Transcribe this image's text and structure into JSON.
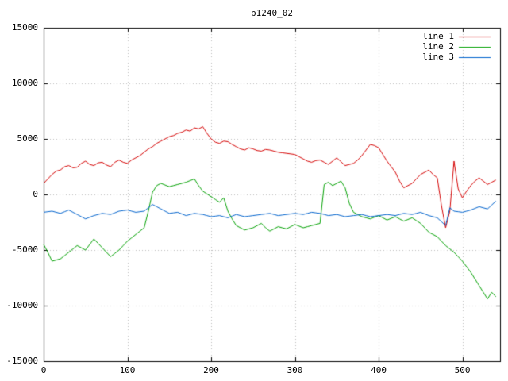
{
  "chart_data": {
    "type": "line",
    "title": "p1240_02",
    "xlabel": "",
    "ylabel": "",
    "xlim": [
      0,
      545
    ],
    "ylim": [
      -15000,
      15000
    ],
    "xticks": [
      0,
      100,
      200,
      300,
      400,
      500
    ],
    "yticks": [
      -15000,
      -10000,
      -5000,
      0,
      5000,
      10000,
      15000
    ],
    "grid": true,
    "grid_style": "dotted",
    "grid_color": "#bbbbbb",
    "axis_color": "#000000",
    "background": "#ffffff",
    "legend_position": "top-right-inside",
    "x_start": 0,
    "x_step": 5,
    "series": [
      {
        "name": "line 1",
        "color": "#d40000",
        "values": [
          1000,
          1400,
          1800,
          2100,
          2200,
          2500,
          2600,
          2400,
          2450,
          2800,
          3000,
          2700,
          2600,
          2850,
          2900,
          2650,
          2500,
          2900,
          3100,
          2900,
          2800,
          3100,
          3300,
          3500,
          3800,
          4100,
          4300,
          4600,
          4800,
          5000,
          5200,
          5300,
          5500,
          5600,
          5800,
          5700,
          6000,
          5900,
          6100,
          5500,
          5000,
          4700,
          4600,
          4800,
          4750,
          4500,
          4300,
          4100,
          4000,
          4200,
          4100,
          3950,
          3900,
          4050,
          4000,
          3900,
          3800,
          3750,
          3700,
          3650,
          3600,
          3400,
          3200,
          3000,
          2900,
          3050,
          3100,
          2900,
          2700,
          3000,
          3300,
          2950,
          2600,
          2700,
          2800,
          3100,
          3500,
          4000,
          4500,
          4400,
          4200,
          3600,
          3000,
          2500,
          2000,
          1200,
          600,
          800,
          1000,
          1400,
          1800,
          2000,
          2200,
          1800,
          1500,
          -1000,
          -3000,
          -1500,
          3000,
          500,
          -300,
          300,
          800,
          1200,
          1500,
          1200,
          900,
          1100,
          1300
        ]
      },
      {
        "name": "line 2",
        "color": "#00a000",
        "values": [
          -4500,
          -5200,
          -6000,
          -5900,
          -5800,
          -5500,
          -5200,
          -4900,
          -4600,
          -4800,
          -5000,
          -4500,
          -4000,
          -4400,
          -4800,
          -5200,
          -5600,
          -5300,
          -5000,
          -4600,
          -4200,
          -3900,
          -3600,
          -3300,
          -3000,
          -1500,
          200,
          800,
          1000,
          850,
          700,
          800,
          900,
          1000,
          1100,
          1250,
          1400,
          800,
          300,
          50,
          -200,
          -450,
          -700,
          -300,
          -1500,
          -2200,
          -2800,
          -3000,
          -3200,
          -3100,
          -3000,
          -2800,
          -2600,
          -3000,
          -3300,
          -3100,
          -2900,
          -3000,
          -3100,
          -2900,
          -2700,
          -2850,
          -3000,
          -2900,
          -2800,
          -2700,
          -2600,
          900,
          1100,
          800,
          1000,
          1200,
          600,
          -800,
          -1600,
          -1800,
          -2000,
          -2100,
          -2200,
          -2050,
          -1900,
          -2100,
          -2300,
          -2150,
          -2000,
          -2200,
          -2400,
          -2250,
          -2100,
          -2350,
          -2600,
          -3000,
          -3400,
          -3600,
          -3800,
          -4200,
          -4600,
          -4900,
          -5200,
          -5600,
          -6000,
          -6500,
          -7000,
          -7600,
          -8200,
          -8800,
          -9400,
          -8800,
          -9200
        ]
      },
      {
        "name": "line 3",
        "color": "#0063cc",
        "values": [
          -1600,
          -1550,
          -1500,
          -1600,
          -1700,
          -1550,
          -1400,
          -1600,
          -1800,
          -2000,
          -2200,
          -2050,
          -1900,
          -1800,
          -1700,
          -1750,
          -1800,
          -1650,
          -1500,
          -1450,
          -1400,
          -1500,
          -1600,
          -1550,
          -1500,
          -1200,
          -900,
          -1100,
          -1300,
          -1500,
          -1700,
          -1650,
          -1600,
          -1750,
          -1900,
          -1800,
          -1700,
          -1750,
          -1800,
          -1900,
          -2000,
          -1950,
          -1900,
          -2000,
          -2100,
          -1950,
          -1800,
          -1900,
          -2000,
          -1950,
          -1900,
          -1850,
          -1800,
          -1750,
          -1700,
          -1800,
          -1900,
          -1850,
          -1800,
          -1750,
          -1700,
          -1750,
          -1800,
          -1700,
          -1600,
          -1650,
          -1700,
          -1800,
          -1900,
          -1850,
          -1800,
          -1900,
          -2000,
          -1950,
          -1900,
          -1850,
          -1800,
          -1900,
          -2000,
          -1950,
          -1900,
          -1850,
          -1800,
          -1850,
          -1900,
          -1800,
          -1700,
          -1750,
          -1800,
          -1700,
          -1600,
          -1750,
          -1900,
          -2000,
          -2100,
          -2450,
          -2800,
          -1200,
          -1500,
          -1550,
          -1600,
          -1500,
          -1400,
          -1250,
          -1100,
          -1200,
          -1300,
          -950,
          -600
        ]
      }
    ]
  }
}
